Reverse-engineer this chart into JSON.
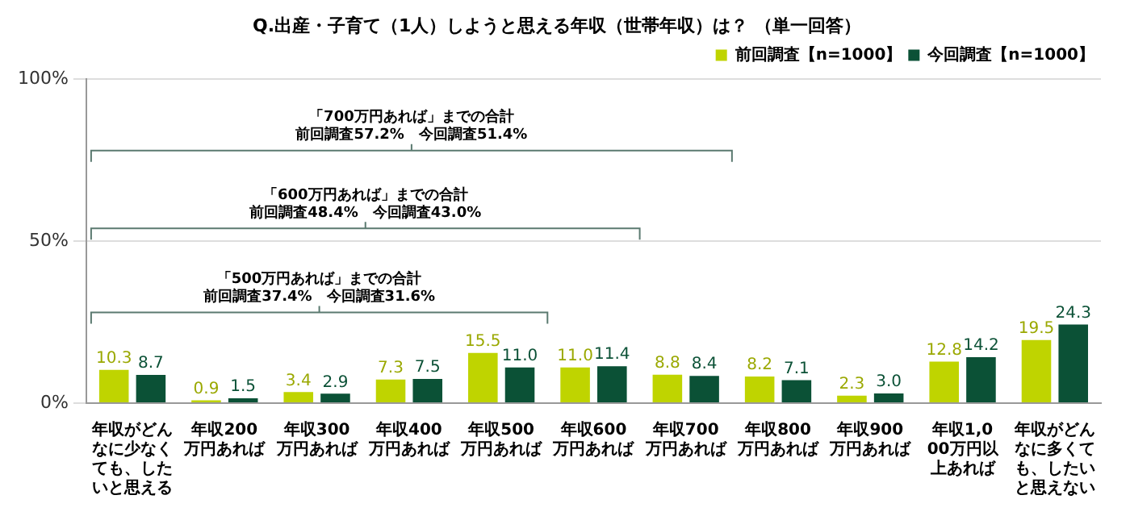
{
  "chart_data": {
    "type": "bar",
    "title": "Q.出産・子育て（1人）しようと思える年収（世帯年収）は？ （単一回答）",
    "categories": [
      "年収がどんなに少なくても、したいと思える",
      "年収200万円あれば",
      "年収300万円あれば",
      "年収400万円あれば",
      "年収500万円あれば",
      "年収600万円あれば",
      "年収700万円あれば",
      "年収800万円あれば",
      "年収900万円あれば",
      "年収1,000万円以上あれば",
      "年収がどんなに多くても、したいと思えない"
    ],
    "series": [
      {
        "name": "前回調査【n=1000】",
        "color": "#bfd400",
        "values": [
          10.3,
          0.9,
          3.4,
          7.3,
          15.5,
          11.0,
          8.8,
          8.2,
          2.3,
          12.8,
          19.5
        ],
        "value_labels": [
          "10.3",
          "0.9",
          "3.4",
          "7.3",
          "15.5",
          "11.0",
          "8.8",
          "8.2",
          "2.3",
          "12.8",
          "19.5"
        ]
      },
      {
        "name": "今回調査【n=1000】",
        "color": "#0b5136",
        "values": [
          8.7,
          1.5,
          2.9,
          7.5,
          11.0,
          11.4,
          8.4,
          7.1,
          3.0,
          14.2,
          24.3
        ],
        "value_labels": [
          "8.7",
          "1.5",
          "2.9",
          "7.5",
          "11.0",
          "11.4",
          "8.4",
          "7.1",
          "3.0",
          "14.2",
          "24.3"
        ]
      }
    ],
    "ylim": [
      0,
      100
    ],
    "yticks": [
      {
        "value": 0,
        "label": "0%"
      },
      {
        "value": 50,
        "label": "50%"
      },
      {
        "value": 100,
        "label": "100%"
      }
    ],
    "grid": "y",
    "legend": "top right",
    "annotations": [
      "「700万円あれば」までの合計",
      "前回調査57.2%　今回調査51.4%",
      "「600万円あれば」までの合計",
      "前回調査48.4%　今回調査43.0%",
      "「500万円あれば」までの合計",
      "前回調査37.4%　今回調査31.6%"
    ]
  }
}
